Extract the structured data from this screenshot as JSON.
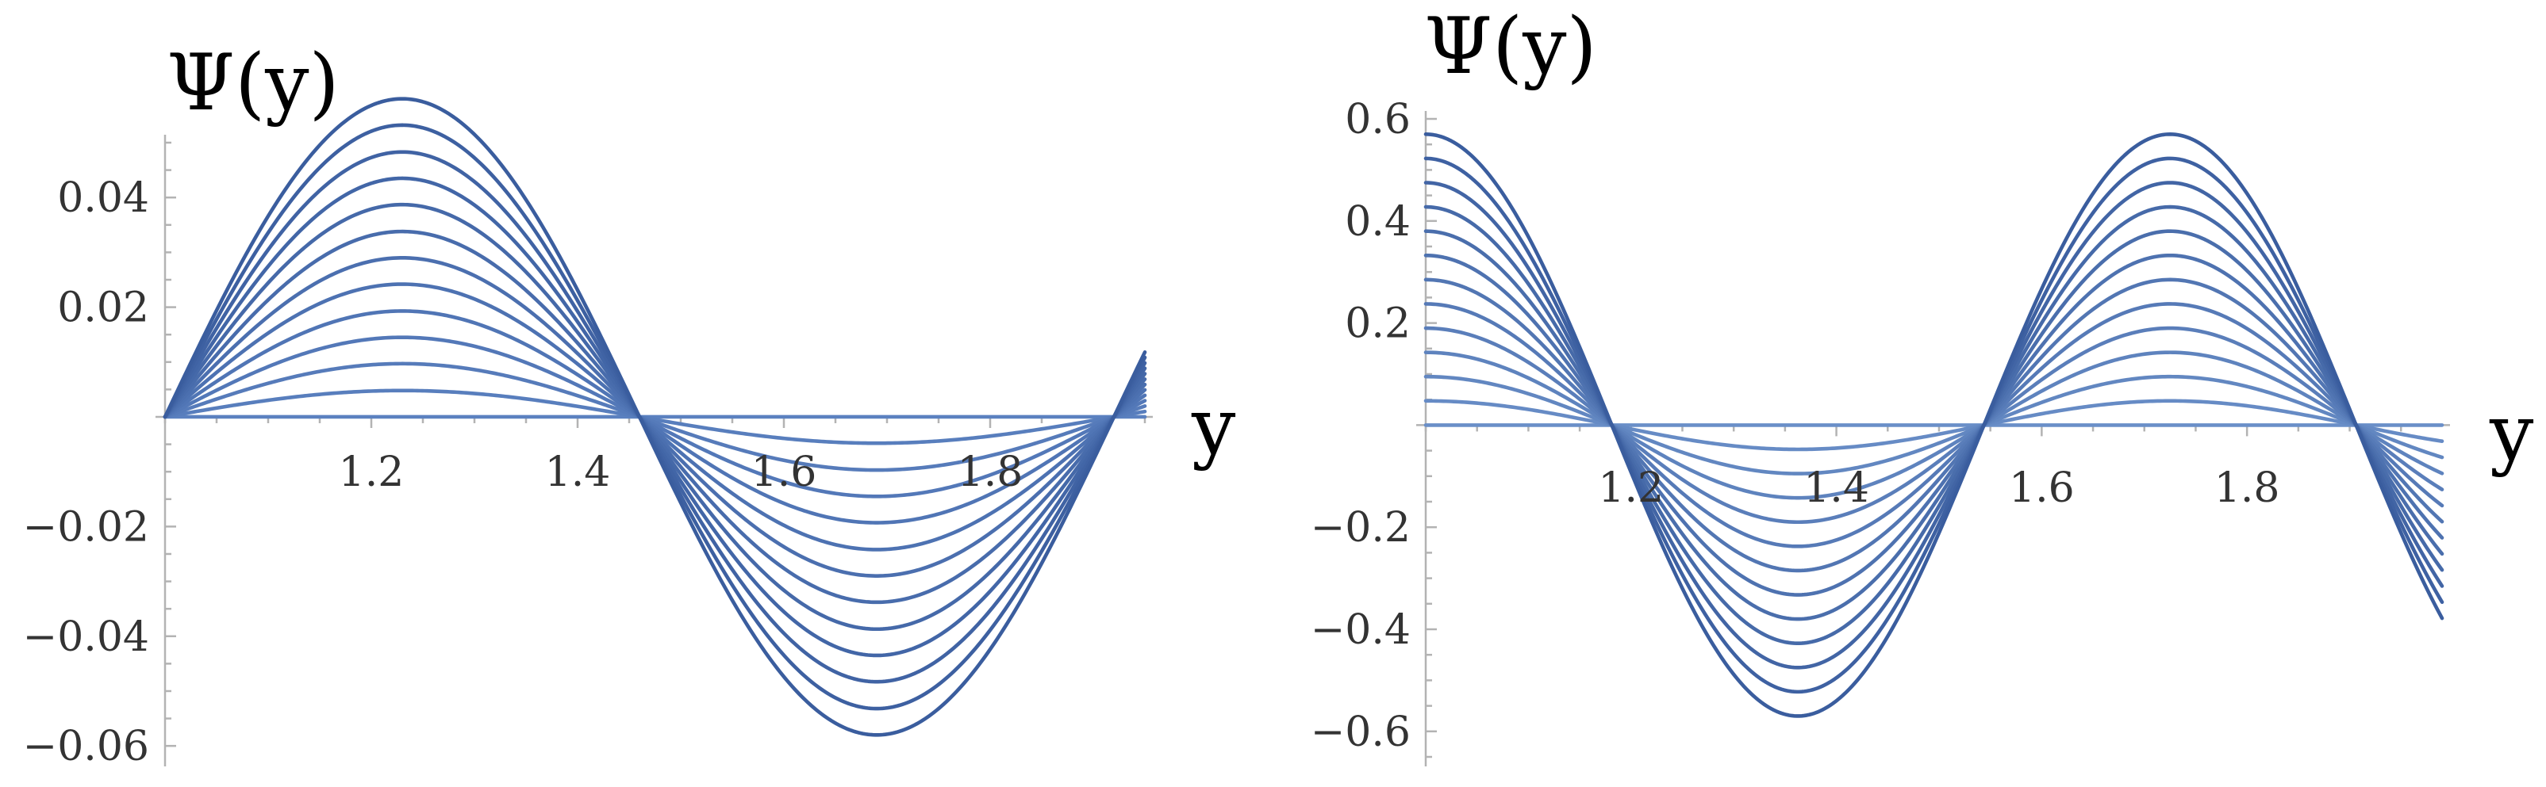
{
  "chart_data": [
    {
      "type": "line",
      "title": "",
      "xlabel": "y",
      "ylabel": "Ψ(y)",
      "xlim": [
        1.0,
        1.95
      ],
      "ylim": [
        -0.062,
        0.05
      ],
      "grid": false,
      "legend": "none",
      "x_ticks": [
        {
          "value": 1.2,
          "label": "1.2"
        },
        {
          "value": 1.4,
          "label": "1.4"
        },
        {
          "value": 1.6,
          "label": "1.6"
        },
        {
          "value": 1.8,
          "label": "1.8"
        }
      ],
      "y_ticks": [
        {
          "value": 0.04,
          "label": "0.04"
        },
        {
          "value": 0.02,
          "label": "0.02"
        },
        {
          "value": -0.02,
          "label": "−0.02"
        },
        {
          "value": -0.04,
          "label": "−0.04"
        },
        {
          "value": -0.06,
          "label": "−0.06"
        }
      ],
      "curve_family": {
        "count": 13,
        "shape": "sin(pi*(y-1)/0.46)",
        "amplitudes": [
          0.0,
          0.0048,
          0.0097,
          0.0145,
          0.0193,
          0.0242,
          0.029,
          0.0338,
          0.0387,
          0.0435,
          0.0483,
          0.0532,
          0.058
        ],
        "x_range": [
          1.0,
          1.95
        ]
      },
      "colors": {
        "line_light": "#5b81c0",
        "line_dark": "#3a5d9e"
      }
    },
    {
      "type": "line",
      "title": "",
      "xlabel": "y",
      "ylabel": "Ψ(y)",
      "xlim": [
        1.0,
        1.99
      ],
      "ylim": [
        -0.65,
        0.6
      ],
      "grid": false,
      "legend": "none",
      "x_ticks": [
        {
          "value": 1.2,
          "label": "1.2"
        },
        {
          "value": 1.4,
          "label": "1.4"
        },
        {
          "value": 1.6,
          "label": "1.6"
        },
        {
          "value": 1.8,
          "label": "1.8"
        }
      ],
      "y_ticks": [
        {
          "value": 0.6,
          "label": "0.6"
        },
        {
          "value": 0.4,
          "label": "0.4"
        },
        {
          "value": 0.2,
          "label": "0.2"
        },
        {
          "value": -0.2,
          "label": "−0.2"
        },
        {
          "value": -0.4,
          "label": "−0.4"
        },
        {
          "value": -0.6,
          "label": "−0.6"
        }
      ],
      "curve_family": {
        "count": 13,
        "shape": "cos(pi*(y-1)/0.3625)",
        "amplitudes": [
          0.0,
          0.0475,
          0.095,
          0.1425,
          0.19,
          0.2375,
          0.285,
          0.3325,
          0.38,
          0.4275,
          0.475,
          0.5225,
          0.57
        ],
        "x_range": [
          1.0,
          1.99
        ]
      },
      "colors": {
        "line_light": "#6a8fc8",
        "line_dark": "#3a5d9e"
      }
    }
  ]
}
